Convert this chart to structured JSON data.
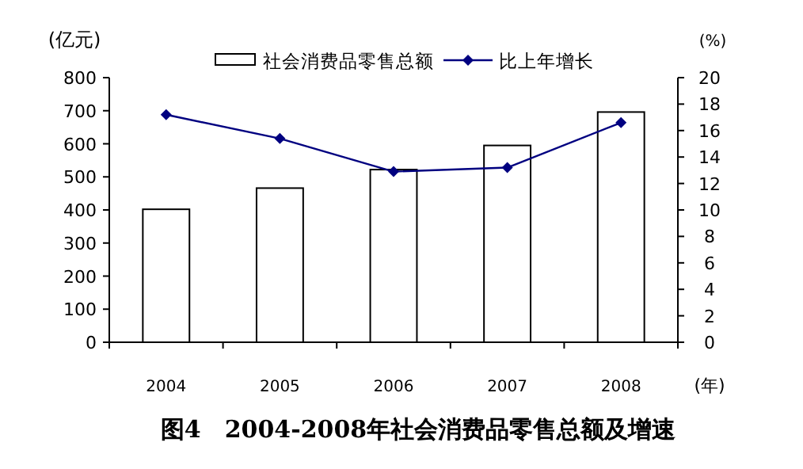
{
  "chart_data": {
    "type": "bar",
    "title": "图4　2004-2008年社会消费品零售总额及增速",
    "xlabel": "(年)",
    "ylabel": "(亿元)",
    "y2label": "(%)",
    "categories": [
      "2004",
      "2005",
      "2006",
      "2007",
      "2008"
    ],
    "series": [
      {
        "name": "社会消费品零售总额",
        "color": "#ffffff",
        "values": [
          402,
          466,
          522,
          595,
          696
        ]
      },
      {
        "name": "比上年增长",
        "type": "line",
        "axis": "y2",
        "color": "#000080",
        "values": [
          17.2,
          15.4,
          12.9,
          13.2,
          16.6
        ]
      }
    ],
    "ylim": [
      0,
      800
    ],
    "yticks": [
      0,
      100,
      200,
      300,
      400,
      500,
      600,
      700,
      800
    ],
    "y2lim": [
      0,
      20
    ],
    "y2ticks": [
      0,
      2,
      4,
      6,
      8,
      10,
      12,
      14,
      16,
      18,
      20
    ],
    "legend": "top",
    "marker": "diamond"
  }
}
